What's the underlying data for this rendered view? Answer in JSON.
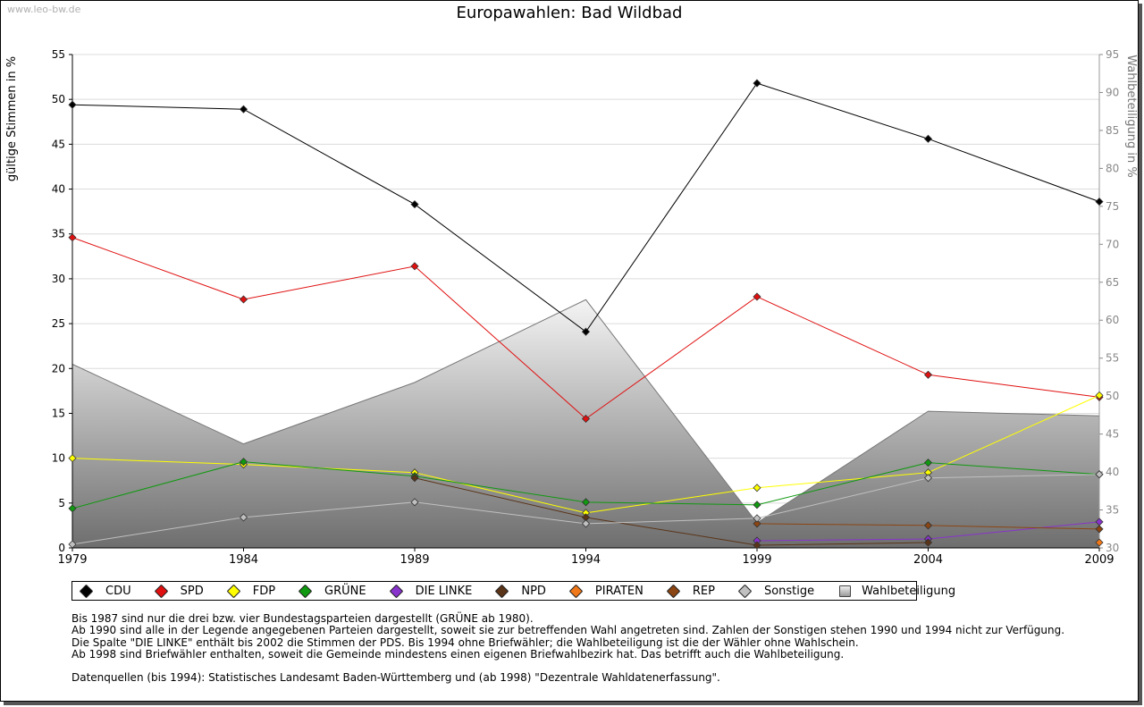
{
  "watermark": "www.leo-bw.de",
  "chart_data": {
    "type": "line",
    "title": "Europawahlen: Bad Wildbad",
    "ylabel_left": "gültige Stimmen in %",
    "ylabel_right": "Wahlbeteiligung in %",
    "x": [
      "1979",
      "1984",
      "1989",
      "1994",
      "1999",
      "2004",
      "2009"
    ],
    "ylim_left": [
      0,
      55
    ],
    "yticks_left": [
      0,
      5,
      10,
      15,
      20,
      25,
      30,
      35,
      40,
      45,
      50,
      55
    ],
    "ylim_right": [
      30,
      95
    ],
    "yticks_right": [
      30,
      35,
      40,
      45,
      50,
      55,
      60,
      65,
      70,
      75,
      80,
      85,
      90,
      95
    ],
    "grid": true,
    "legend_position": "bottom",
    "area": {
      "name": "Wahlbeteiligung",
      "axis": "right",
      "values": [
        54.2,
        43.7,
        51.8,
        62.7,
        33.3,
        48.0,
        47.4
      ]
    },
    "series": [
      {
        "name": "CDU",
        "color": "#000000",
        "values": [
          49.4,
          48.9,
          38.3,
          24.1,
          51.8,
          45.6,
          38.6
        ]
      },
      {
        "name": "SPD",
        "color": "#e01010",
        "values": [
          34.6,
          27.7,
          31.4,
          14.4,
          28.0,
          19.3,
          16.8
        ]
      },
      {
        "name": "FDP",
        "color": "#ffff00",
        "values": [
          10.0,
          9.3,
          8.4,
          3.9,
          6.7,
          8.4,
          17.0
        ]
      },
      {
        "name": "GRÜNE",
        "color": "#119911",
        "values": [
          4.4,
          9.6,
          8.0,
          5.1,
          4.8,
          9.5,
          8.2
        ]
      },
      {
        "name": "DIE LINKE",
        "color": "#8833cc",
        "values": [
          null,
          null,
          null,
          null,
          0.8,
          1.0,
          2.9
        ]
      },
      {
        "name": "NPD",
        "color": "#5a3418",
        "values": [
          null,
          null,
          7.8,
          3.4,
          0.3,
          0.6,
          null
        ]
      },
      {
        "name": "PIRATEN",
        "color": "#f07818",
        "values": [
          null,
          null,
          null,
          null,
          null,
          null,
          0.6
        ]
      },
      {
        "name": "REP",
        "color": "#8b4513",
        "values": [
          null,
          null,
          null,
          null,
          2.7,
          2.5,
          2.1
        ]
      },
      {
        "name": "Sonstige",
        "color": "#c0c0c0",
        "values": [
          0.4,
          3.4,
          5.1,
          2.7,
          3.3,
          7.8,
          8.2
        ]
      }
    ]
  },
  "legend": [
    {
      "label": "CDU",
      "color": "#000000"
    },
    {
      "label": "SPD",
      "color": "#e01010"
    },
    {
      "label": "FDP",
      "color": "#ffff00"
    },
    {
      "label": "GRÜNE",
      "color": "#119911"
    },
    {
      "label": "DIE LINKE",
      "color": "#8833cc"
    },
    {
      "label": "NPD",
      "color": "#5a3418"
    },
    {
      "label": "PIRATEN",
      "color": "#f07818"
    },
    {
      "label": "REP",
      "color": "#8b4513"
    },
    {
      "label": "Sonstige",
      "color": "#c0c0c0"
    },
    {
      "label": "Wahlbeteiligung",
      "color": "box"
    }
  ],
  "notes": {
    "line1": "Bis 1987 sind nur die drei bzw. vier Bundestagsparteien dargestellt (GRÜNE ab 1980).",
    "line2": "Ab 1990 sind alle in der Legende angegebenen Parteien dargestellt, soweit sie zur betreffenden Wahl angetreten sind. Zahlen der Sonstigen stehen 1990 und 1994 nicht zur Verfügung.",
    "line3": "Die Spalte \"DIE LINKE\" enthält bis 2002 die Stimmen der PDS. Bis 1994 ohne Briefwähler; die Wahlbeteiligung ist die der Wähler ohne Wahlschein.",
    "line4": "Ab 1998 sind Briefwähler enthalten, soweit die Gemeinde mindestens einen eigenen Briefwahlbezirk hat. Das betrifft auch die Wahlbeteiligung.",
    "sources": "Datenquellen (bis 1994): Statistisches Landesamt Baden-Württemberg und (ab 1998) \"Dezentrale Wahldatenerfassung\"."
  }
}
